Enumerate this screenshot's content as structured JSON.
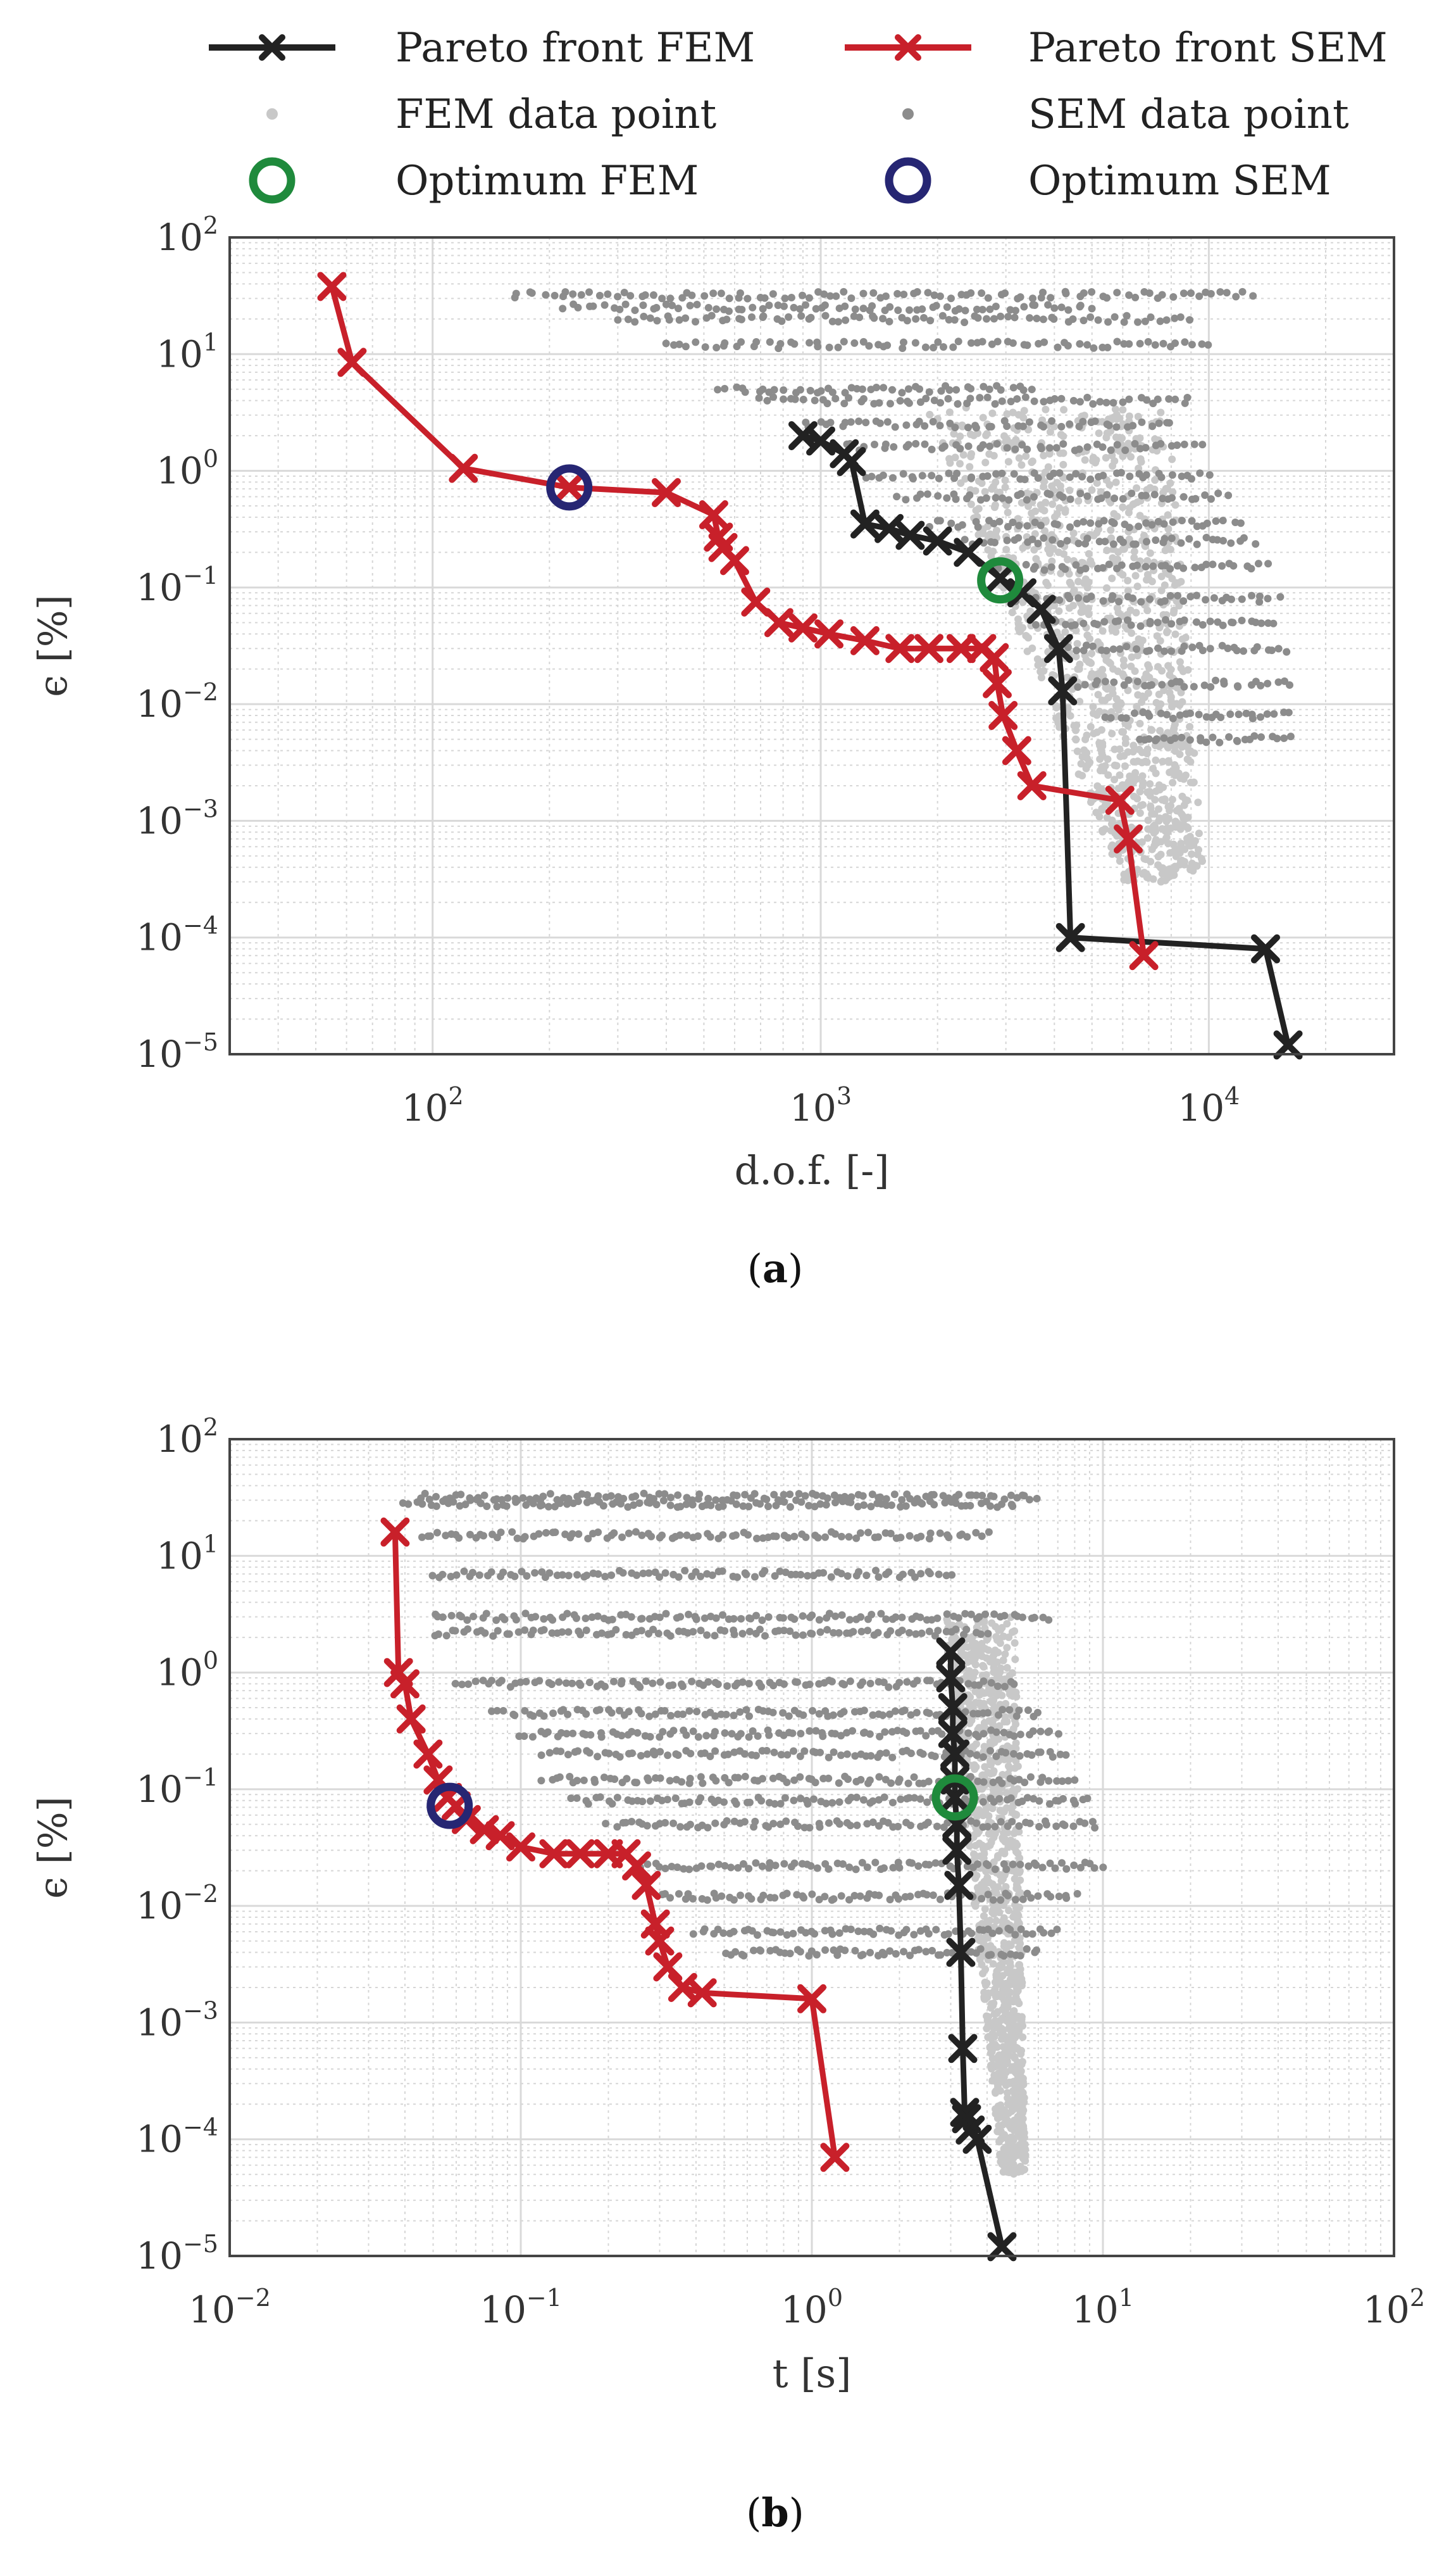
{
  "legend": {
    "items": [
      {
        "key": "pareto_fem",
        "label": "Pareto front FEM",
        "color": "#222222",
        "kind": "line-x"
      },
      {
        "key": "pareto_sem",
        "label": "Pareto front SEM",
        "color": "#c8202a",
        "kind": "line-x"
      },
      {
        "key": "fem_points",
        "label": "FEM data point",
        "color": "#c8c8c8",
        "kind": "dot"
      },
      {
        "key": "sem_points",
        "label": "SEM data point",
        "color": "#8c8c8c",
        "kind": "dot"
      },
      {
        "key": "opt_fem",
        "label": "Optimum FEM",
        "color": "#1f8a3c",
        "kind": "ring"
      },
      {
        "key": "opt_sem",
        "label": "Optimum SEM",
        "color": "#262673",
        "kind": "ring"
      }
    ]
  },
  "chart_data": [
    {
      "type": "scatter",
      "caption_open": "(",
      "caption_letter": "a",
      "caption_close": ")",
      "xlabel": "d.o.f. [-]",
      "ylabel": "ϵ [%]",
      "xscale": "log",
      "yscale": "log",
      "xlim": [
        30,
        30000
      ],
      "ylim": [
        1e-05,
        100
      ],
      "grid": true,
      "x_ticks": [
        {
          "base": "10",
          "exp": "2",
          "value": 100
        },
        {
          "base": "10",
          "exp": "3",
          "value": 1000
        },
        {
          "base": "10",
          "exp": "4",
          "value": 10000
        }
      ],
      "y_ticks": [
        {
          "base": "10",
          "exp": "−5",
          "value": 1e-05
        },
        {
          "base": "10",
          "exp": "−4",
          "value": 0.0001
        },
        {
          "base": "10",
          "exp": "−3",
          "value": 0.001
        },
        {
          "base": "10",
          "exp": "−2",
          "value": 0.01
        },
        {
          "base": "10",
          "exp": "−1",
          "value": 0.1
        },
        {
          "base": "10",
          "exp": "0",
          "value": 1
        },
        {
          "base": "10",
          "exp": "1",
          "value": 10
        },
        {
          "base": "10",
          "exp": "2",
          "value": 100
        }
      ],
      "pareto_fem": {
        "x": [
          900,
          1000,
          1150,
          1200,
          1300,
          1500,
          1700,
          2000,
          2400,
          2900,
          3300,
          3700,
          4100,
          4200,
          4400,
          14000,
          16000
        ],
        "y": [
          2.0,
          1.8,
          1.4,
          1.2,
          0.35,
          0.32,
          0.28,
          0.25,
          0.2,
          0.12,
          0.09,
          0.065,
          0.03,
          0.013,
          0.0001,
          8e-05,
          1.2e-05
        ]
      },
      "pareto_sem": {
        "x": [
          55,
          62,
          120,
          225,
          400,
          530,
          545,
          560,
          600,
          680,
          780,
          900,
          1050,
          1300,
          1600,
          1900,
          2300,
          2600,
          2800,
          2850,
          2950,
          3200,
          3500,
          5900,
          6200,
          6800
        ],
        "y": [
          38,
          8.5,
          1.05,
          0.72,
          0.65,
          0.42,
          0.27,
          0.22,
          0.17,
          0.075,
          0.05,
          0.045,
          0.04,
          0.035,
          0.03,
          0.03,
          0.03,
          0.03,
          0.025,
          0.015,
          0.008,
          0.004,
          0.002,
          0.0015,
          0.0007,
          7e-05
        ]
      },
      "optimum_fem": {
        "x": 2900,
        "y": 0.115
      },
      "optimum_sem": {
        "x": 225,
        "y": 0.72
      },
      "sem_cloud": {
        "streaks": [
          {
            "x0": 160,
            "x1": 13000,
            "y": 32
          },
          {
            "x0": 220,
            "x1": 5000,
            "y": 25
          },
          {
            "x0": 300,
            "x1": 9000,
            "y": 20
          },
          {
            "x0": 400,
            "x1": 10000,
            "y": 12
          },
          {
            "x0": 550,
            "x1": 3500,
            "y": 5
          },
          {
            "x0": 700,
            "x1": 9000,
            "y": 4
          },
          {
            "x0": 900,
            "x1": 8000,
            "y": 2.5
          },
          {
            "x0": 1100,
            "x1": 9500,
            "y": 1.6
          },
          {
            "x0": 1300,
            "x1": 10000,
            "y": 0.9
          },
          {
            "x0": 1600,
            "x1": 11000,
            "y": 0.6
          },
          {
            "x0": 1900,
            "x1": 12000,
            "y": 0.35
          },
          {
            "x0": 2300,
            "x1": 13000,
            "y": 0.25
          },
          {
            "x0": 2800,
            "x1": 14000,
            "y": 0.15
          },
          {
            "x0": 3200,
            "x1": 15000,
            "y": 0.08
          },
          {
            "x0": 3600,
            "x1": 15000,
            "y": 0.05
          },
          {
            "x0": 4000,
            "x1": 16000,
            "y": 0.03
          },
          {
            "x0": 4500,
            "x1": 16000,
            "y": 0.015
          },
          {
            "x0": 5500,
            "x1": 16000,
            "y": 0.008
          },
          {
            "x0": 6500,
            "x1": 16000,
            "y": 0.005
          }
        ]
      },
      "fem_cloud": {
        "x_range": [
          1500,
          26000
        ],
        "y_range": [
          0.0003,
          3.5
        ]
      }
    },
    {
      "type": "scatter",
      "caption_open": "(",
      "caption_letter": "b",
      "caption_close": ")",
      "xlabel": "t [s]",
      "ylabel": "ϵ [%]",
      "xscale": "log",
      "yscale": "log",
      "xlim": [
        0.01,
        100
      ],
      "ylim": [
        1e-05,
        100
      ],
      "grid": true,
      "x_ticks": [
        {
          "base": "10",
          "exp": "−2",
          "value": 0.01
        },
        {
          "base": "10",
          "exp": "−1",
          "value": 0.1
        },
        {
          "base": "10",
          "exp": "0",
          "value": 1
        },
        {
          "base": "10",
          "exp": "1",
          "value": 10
        },
        {
          "base": "10",
          "exp": "2",
          "value": 100
        }
      ],
      "y_ticks": [
        {
          "base": "10",
          "exp": "−5",
          "value": 1e-05
        },
        {
          "base": "10",
          "exp": "−4",
          "value": 0.0001
        },
        {
          "base": "10",
          "exp": "−3",
          "value": 0.001
        },
        {
          "base": "10",
          "exp": "−2",
          "value": 0.01
        },
        {
          "base": "10",
          "exp": "−1",
          "value": 0.1
        },
        {
          "base": "10",
          "exp": "0",
          "value": 1
        },
        {
          "base": "10",
          "exp": "1",
          "value": 10
        },
        {
          "base": "10",
          "exp": "2",
          "value": 100
        }
      ],
      "pareto_fem": {
        "x": [
          3.0,
          3.0,
          3.05,
          3.05,
          3.1,
          3.1,
          3.1,
          3.15,
          3.15,
          3.2,
          3.25,
          3.3,
          3.35,
          3.4,
          3.5,
          3.7,
          4.5
        ],
        "y": [
          1.5,
          0.9,
          0.5,
          0.3,
          0.2,
          0.12,
          0.085,
          0.05,
          0.03,
          0.015,
          0.004,
          0.0006,
          0.00017,
          0.00015,
          0.00012,
          0.0001,
          1.2e-05
        ]
      },
      "pareto_sem": {
        "x": [
          0.037,
          0.038,
          0.04,
          0.042,
          0.048,
          0.052,
          0.056,
          0.06,
          0.065,
          0.075,
          0.085,
          0.1,
          0.13,
          0.16,
          0.2,
          0.23,
          0.25,
          0.27,
          0.29,
          0.3,
          0.32,
          0.36,
          0.42,
          1.0,
          1.2
        ],
        "y": [
          16,
          1.0,
          0.8,
          0.4,
          0.2,
          0.12,
          0.085,
          0.072,
          0.055,
          0.045,
          0.04,
          0.032,
          0.028,
          0.028,
          0.028,
          0.028,
          0.022,
          0.015,
          0.007,
          0.005,
          0.003,
          0.002,
          0.0018,
          0.0016,
          7e-05
        ]
      },
      "optimum_fem": {
        "x": 3.1,
        "y": 0.085
      },
      "optimum_sem": {
        "x": 0.057,
        "y": 0.072
      },
      "sem_cloud": {
        "streaks": [
          {
            "x0": 0.045,
            "x1": 6.0,
            "y": 32
          },
          {
            "x0": 0.04,
            "x1": 5.0,
            "y": 28
          },
          {
            "x0": 0.045,
            "x1": 4.0,
            "y": 15
          },
          {
            "x0": 0.05,
            "x1": 3.0,
            "y": 7
          },
          {
            "x0": 0.05,
            "x1": 6.5,
            "y": 3
          },
          {
            "x0": 0.05,
            "x1": 4.0,
            "y": 2.2
          },
          {
            "x0": 0.06,
            "x1": 5.0,
            "y": 0.8
          },
          {
            "x0": 0.08,
            "x1": 6.0,
            "y": 0.45
          },
          {
            "x0": 0.1,
            "x1": 7.0,
            "y": 0.3
          },
          {
            "x0": 0.12,
            "x1": 7.5,
            "y": 0.2
          },
          {
            "x0": 0.12,
            "x1": 8.0,
            "y": 0.12
          },
          {
            "x0": 0.15,
            "x1": 9.0,
            "y": 0.08
          },
          {
            "x0": 0.2,
            "x1": 9.5,
            "y": 0.05
          },
          {
            "x0": 0.25,
            "x1": 10.0,
            "y": 0.022
          },
          {
            "x0": 0.3,
            "x1": 8.0,
            "y": 0.012
          },
          {
            "x0": 0.4,
            "x1": 7.0,
            "y": 0.006
          },
          {
            "x0": 0.5,
            "x1": 6.0,
            "y": 0.004
          }
        ]
      },
      "fem_cloud": {
        "x_range": [
          2.6,
          8.0
        ],
        "y_range": [
          5e-05,
          3.0
        ]
      }
    }
  ]
}
